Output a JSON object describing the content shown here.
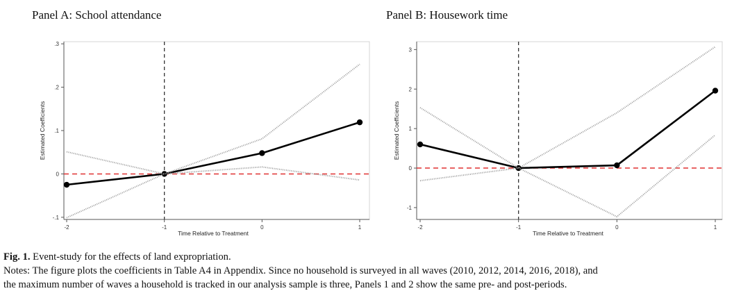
{
  "figure": {
    "caption_label": "Fig. 1.",
    "caption_title": "Event-study for the effects of land expropriation.",
    "notes_line1": "Notes: The figure plots the coefficients in Table A4 in Appendix. Since no household is surveyed in all waves (2010, 2012, 2014, 2016, 2018), and",
    "notes_line2": "the maximum number of waves a household is tracked in our analysis sample is three, Panels 1 and 2 show the same pre- and post-periods."
  },
  "chart_data": [
    {
      "type": "line",
      "title": "Panel A: School attendance",
      "xlabel": "Time Relative to Treatment",
      "ylabel": "Estimated Coefficients",
      "x": [
        -2,
        -1,
        0,
        1
      ],
      "x_tick_labels": [
        "-2",
        "-1",
        "0",
        "1"
      ],
      "xlim": [
        -2,
        1
      ],
      "ylim": [
        -0.105,
        0.305
      ],
      "y_ticks": [
        -0.1,
        0,
        0.1,
        0.2,
        0.3
      ],
      "y_tick_labels": [
        "-.1",
        "0",
        ".1",
        ".2",
        ".3"
      ],
      "series": [
        {
          "values": [
            -0.025,
            0,
            0.048,
            0.119
          ],
          "style": "solid-markers",
          "color": "#000000"
        },
        {
          "values": [
            0.051,
            0,
            0.081,
            0.253
          ],
          "style": "dotted",
          "color": "#9a9a9a"
        },
        {
          "values": [
            -0.101,
            0,
            0.016,
            -0.014
          ],
          "style": "dotted",
          "color": "#9a9a9a"
        }
      ],
      "reference_hline": {
        "y": 0,
        "color": "#e03030",
        "style": "dashed"
      },
      "reference_vline": {
        "x": -1,
        "color": "#333333",
        "style": "dashed"
      },
      "grid": false
    },
    {
      "type": "line",
      "title": "Panel B: Housework time",
      "xlabel": "Time Relative to Treatment",
      "ylabel": "Estimated Coefficients",
      "x": [
        -2,
        -1,
        0,
        1
      ],
      "x_tick_labels": [
        "-2",
        "-1",
        "0",
        "1"
      ],
      "xlim": [
        -2,
        1
      ],
      "ylim": [
        -1.3,
        3.2
      ],
      "y_ticks": [
        -1,
        0,
        1,
        2,
        3
      ],
      "y_tick_labels": [
        "-1",
        "0",
        "1",
        "2",
        "3"
      ],
      "series": [
        {
          "values": [
            0.6,
            0,
            0.07,
            1.96
          ],
          "style": "solid-markers",
          "color": "#000000"
        },
        {
          "values": [
            1.53,
            0,
            1.4,
            3.07
          ],
          "style": "dotted",
          "color": "#9a9a9a"
        },
        {
          "values": [
            -0.32,
            0,
            -1.23,
            0.84
          ],
          "style": "dotted",
          "color": "#9a9a9a"
        }
      ],
      "reference_hline": {
        "y": 0,
        "color": "#e03030",
        "style": "dashed"
      },
      "reference_vline": {
        "x": -1,
        "color": "#333333",
        "style": "dashed"
      },
      "grid": false
    }
  ]
}
